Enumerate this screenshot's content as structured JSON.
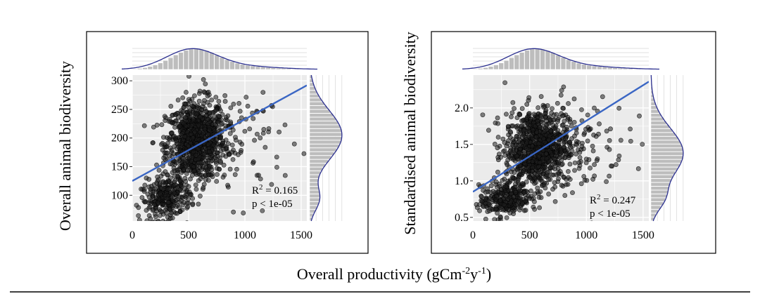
{
  "figure": {
    "xlabel": "Overall productivity (gCm",
    "xlabel_sup1": "-2",
    "xlabel_mid": "y",
    "xlabel_sup2": "-1",
    "xlabel_end": ")"
  },
  "chart_data": [
    {
      "type": "scatter",
      "ylabel": "Overall animal biodiversity",
      "xlim": [
        0,
        1550
      ],
      "ylim": [
        55,
        310
      ],
      "x_ticks": [
        0,
        500,
        1000,
        1500
      ],
      "x_tick_labels": [
        "0",
        "500",
        "1000",
        "1500"
      ],
      "y_ticks": [
        100,
        150,
        200,
        250,
        300
      ],
      "y_tick_labels": [
        "100",
        "150",
        "200",
        "250",
        "300"
      ],
      "grid": true,
      "regression": {
        "x": [
          0,
          1550
        ],
        "y": [
          125,
          292
        ]
      },
      "annotation": {
        "r2_prefix": "R",
        "r2_sup": "2",
        "r2_value": " = 0.165",
        "p": "p < 1e-05"
      },
      "cluster_centers": [
        {
          "x": 560,
          "y": 195,
          "sx": 130,
          "sy": 35,
          "n": 900
        },
        {
          "x": 300,
          "y": 95,
          "sx": 110,
          "sy": 18,
          "n": 280
        },
        {
          "x": 900,
          "y": 190,
          "sx": 230,
          "sy": 50,
          "n": 120
        }
      ],
      "x_marginal_peak": 550,
      "y_marginal_peak": 205
    },
    {
      "type": "scatter",
      "ylabel": "Standardised animal  biodiversity",
      "xlim": [
        0,
        1550
      ],
      "ylim": [
        0.45,
        2.45
      ],
      "x_ticks": [
        0,
        500,
        1000,
        1500
      ],
      "x_tick_labels": [
        "0",
        "500",
        "1000",
        "1500"
      ],
      "y_ticks": [
        0.5,
        1.0,
        1.5,
        2.0
      ],
      "y_tick_labels": [
        "0.5",
        "1.0",
        "1.5",
        "2.0"
      ],
      "grid": true,
      "regression": {
        "x": [
          0,
          1550
        ],
        "y": [
          0.85,
          2.36
        ]
      },
      "annotation": {
        "r2_prefix": "R",
        "r2_sup": "2",
        "r2_value": " = 0.247",
        "p": "p < 1e-05"
      },
      "cluster_centers": [
        {
          "x": 560,
          "y": 1.45,
          "sx": 140,
          "sy": 0.27,
          "n": 900
        },
        {
          "x": 280,
          "y": 0.75,
          "sx": 110,
          "sy": 0.12,
          "n": 260
        },
        {
          "x": 900,
          "y": 1.45,
          "sx": 230,
          "sy": 0.35,
          "n": 120
        }
      ],
      "x_marginal_peak": 550,
      "y_marginal_peak": 1.38
    }
  ]
}
